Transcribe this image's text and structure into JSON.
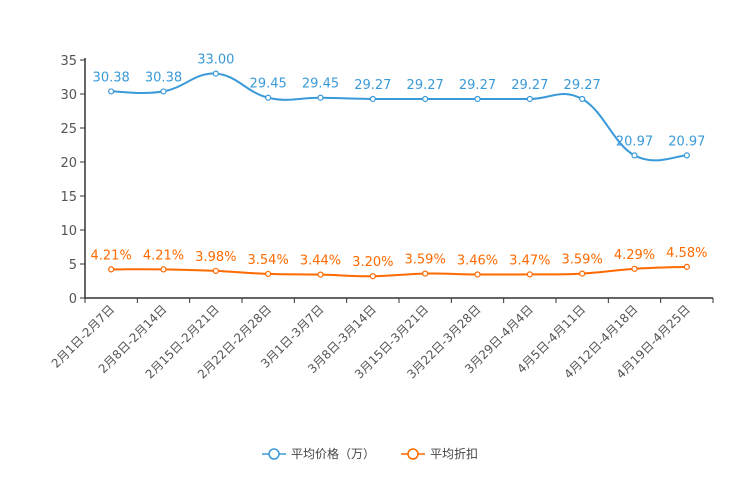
{
  "chart_data": {
    "type": "line",
    "categories": [
      "2月1日-2月7日",
      "2月8日-2月14日",
      "2月15日-2月21日",
      "2月22日-2月28日",
      "3月1日-3月7日",
      "3月8日-3月14日",
      "3月15日-3月21日",
      "3月22日-3月28日",
      "3月29日-4月4日",
      "4月5日-4月11日",
      "4月12日-4月18日",
      "4月19日-4月25日"
    ],
    "ylim": [
      0,
      35
    ],
    "yticks": [
      0,
      5,
      10,
      15,
      20,
      25,
      30,
      35
    ],
    "grid": false,
    "legend_position": "bottom",
    "series": [
      {
        "name": "平均价格（万）",
        "color": "#3a9ad9",
        "values": [
          30.38,
          30.38,
          33.0,
          29.45,
          29.45,
          29.27,
          29.27,
          29.27,
          29.27,
          29.27,
          20.97,
          20.97
        ],
        "labels": [
          "30.38",
          "30.38",
          "33.00",
          "29.45",
          "29.45",
          "29.27",
          "29.27",
          "29.27",
          "29.27",
          "29.27",
          "20.97",
          "20.97"
        ]
      },
      {
        "name": "平均折扣",
        "color": "#ff6a00",
        "values": [
          4.21,
          4.21,
          3.98,
          3.54,
          3.44,
          3.2,
          3.59,
          3.46,
          3.47,
          3.59,
          4.29,
          4.58
        ],
        "labels": [
          "4.21%",
          "4.21%",
          "3.98%",
          "3.54%",
          "3.44%",
          "3.20%",
          "3.59%",
          "3.46%",
          "3.47%",
          "3.59%",
          "4.29%",
          "4.58%"
        ]
      }
    ]
  }
}
